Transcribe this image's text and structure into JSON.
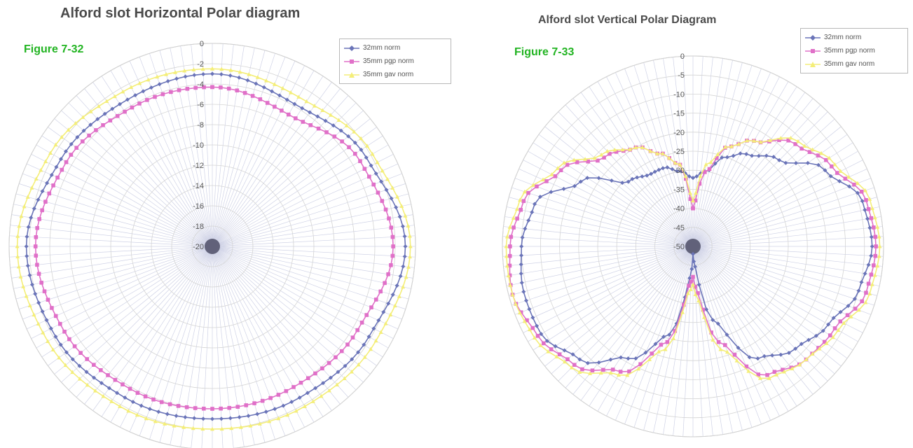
{
  "chart_data": [
    {
      "type": "polar",
      "title": "Alford slot Horizontal Polar diagram",
      "figure_label": "Figure 7-32",
      "r_ticks": [
        "0",
        "-2",
        "-4",
        "-6",
        "-8",
        "-10",
        "-12",
        "-14",
        "-16",
        "-18",
        "-20"
      ],
      "r_range": [
        -20,
        0
      ],
      "angle_step_deg": 3,
      "grid": true,
      "legend_position": "top-right",
      "angles_deg": [
        0,
        30,
        60,
        90,
        120,
        150,
        180,
        210,
        240,
        270,
        300,
        330,
        360
      ],
      "series": [
        {
          "name": "32mm norm",
          "color": "#6a74b8",
          "marker": "diamond",
          "values": [
            -3.0,
            -3.8,
            -2.5,
            -1.0,
            -2.2,
            -2.8,
            -3.0,
            -2.8,
            -2.2,
            -1.7,
            -2.8,
            -3.3,
            -3.0
          ]
        },
        {
          "name": "35mm pgp norm",
          "color": "#e070c8",
          "marker": "square",
          "values": [
            -4.3,
            -5.0,
            -3.2,
            -2.2,
            -3.5,
            -4.0,
            -4.0,
            -3.8,
            -3.2,
            -2.6,
            -3.4,
            -4.2,
            -4.3
          ]
        },
        {
          "name": "35mm gav norm",
          "color": "#f4ee78",
          "marker": "triangle",
          "values": [
            -2.5,
            -3.0,
            -1.8,
            -0.5,
            -1.4,
            -1.8,
            -2.0,
            -1.8,
            -1.3,
            -0.8,
            -1.6,
            -2.4,
            -2.5
          ]
        }
      ]
    },
    {
      "type": "polar",
      "title": "Alford slot Vertical Polar Diagram",
      "figure_label": "Figure 7-33",
      "r_ticks": [
        "0",
        "-5",
        "-10",
        "-15",
        "-20",
        "-25",
        "-30",
        "-35",
        "-40",
        "-45",
        "-50"
      ],
      "r_range": [
        -50,
        0
      ],
      "angle_step_deg": 3,
      "grid": true,
      "legend_position": "top-right",
      "angles_deg": [
        0,
        10,
        20,
        30,
        45,
        60,
        75,
        90,
        105,
        120,
        135,
        150,
        165,
        175,
        180,
        185,
        195,
        210,
        225,
        240,
        255,
        270,
        285,
        300,
        315,
        330,
        340,
        350,
        360
      ],
      "series": [
        {
          "name": "32mm norm",
          "color": "#6a74b8",
          "marker": "diamond",
          "values": [
            -32,
            -30,
            -25,
            -22,
            -18,
            -10,
            -4,
            -3,
            -5,
            -9,
            -12,
            -16,
            -30,
            -45,
            -48,
            -42,
            -26,
            -16,
            -8,
            -4,
            -4,
            -5,
            -7,
            -16,
            -26,
            -28,
            -28,
            -30,
            -32
          ]
        },
        {
          "name": "35mm pgp norm",
          "color": "#e070c8",
          "marker": "square",
          "values": [
            -40,
            -30,
            -22,
            -18,
            -12,
            -8,
            -3,
            -2,
            -3,
            -7,
            -8,
            -11,
            -24,
            -38,
            -42,
            -40,
            -24,
            -12,
            -6,
            -3,
            -1,
            -2,
            -4,
            -10,
            -17,
            -20,
            -24,
            -28,
            -40
          ]
        },
        {
          "name": "35mm gav norm",
          "color": "#f4ee78",
          "marker": "triangle",
          "values": [
            -38,
            -28,
            -22,
            -18,
            -11,
            -7,
            -2,
            -1,
            -2,
            -6,
            -8,
            -10,
            -22,
            -36,
            -40,
            -38,
            -22,
            -11,
            -5,
            -2,
            -1,
            -1,
            -3,
            -9,
            -16,
            -20,
            -24,
            -28,
            -38
          ]
        }
      ]
    }
  ]
}
